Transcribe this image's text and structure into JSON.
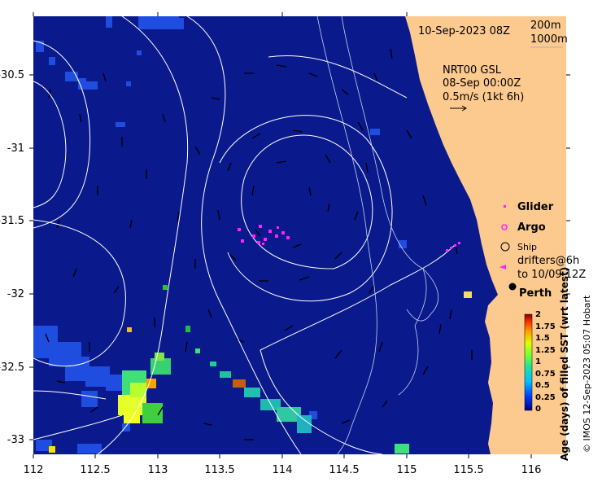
{
  "map": {
    "date_label": "10-Sep-2023 08Z",
    "depth_labels": [
      "200m",
      "1000m"
    ],
    "current_source": "NRT00 GSL",
    "current_time": "08-Sep 00:00Z",
    "current_scale": "0.5m/s (1kt 6h)",
    "x_ticks": [
      "112",
      "112.5",
      "113",
      "113.5",
      "114",
      "114.5",
      "115",
      "115.5",
      "116"
    ],
    "y_ticks": [
      "-30.5",
      "-31",
      "-31.5",
      "-32",
      "-32.5",
      "-33"
    ],
    "legend": {
      "glider": "Glider",
      "argo": "Argo",
      "ship": "Ship",
      "drifters_line1": "drifters@6h",
      "drifters_line2": "to 10/09 12Z",
      "city": "Perth"
    },
    "colorbar": {
      "ticks": [
        "2",
        "1.75",
        "1.5",
        "1.25",
        "1",
        "0.75",
        "0.5",
        "0.25",
        "0"
      ],
      "title": "Age (days) of filled SST (wrt latest)"
    },
    "credit": "© IMOS 12-Sep-2023 05:07 Hobart",
    "colors": {
      "ocean": "#0a1a8c",
      "land": "#fcc98f",
      "markers": "#ff22ff",
      "contour": "#ffffff"
    }
  }
}
